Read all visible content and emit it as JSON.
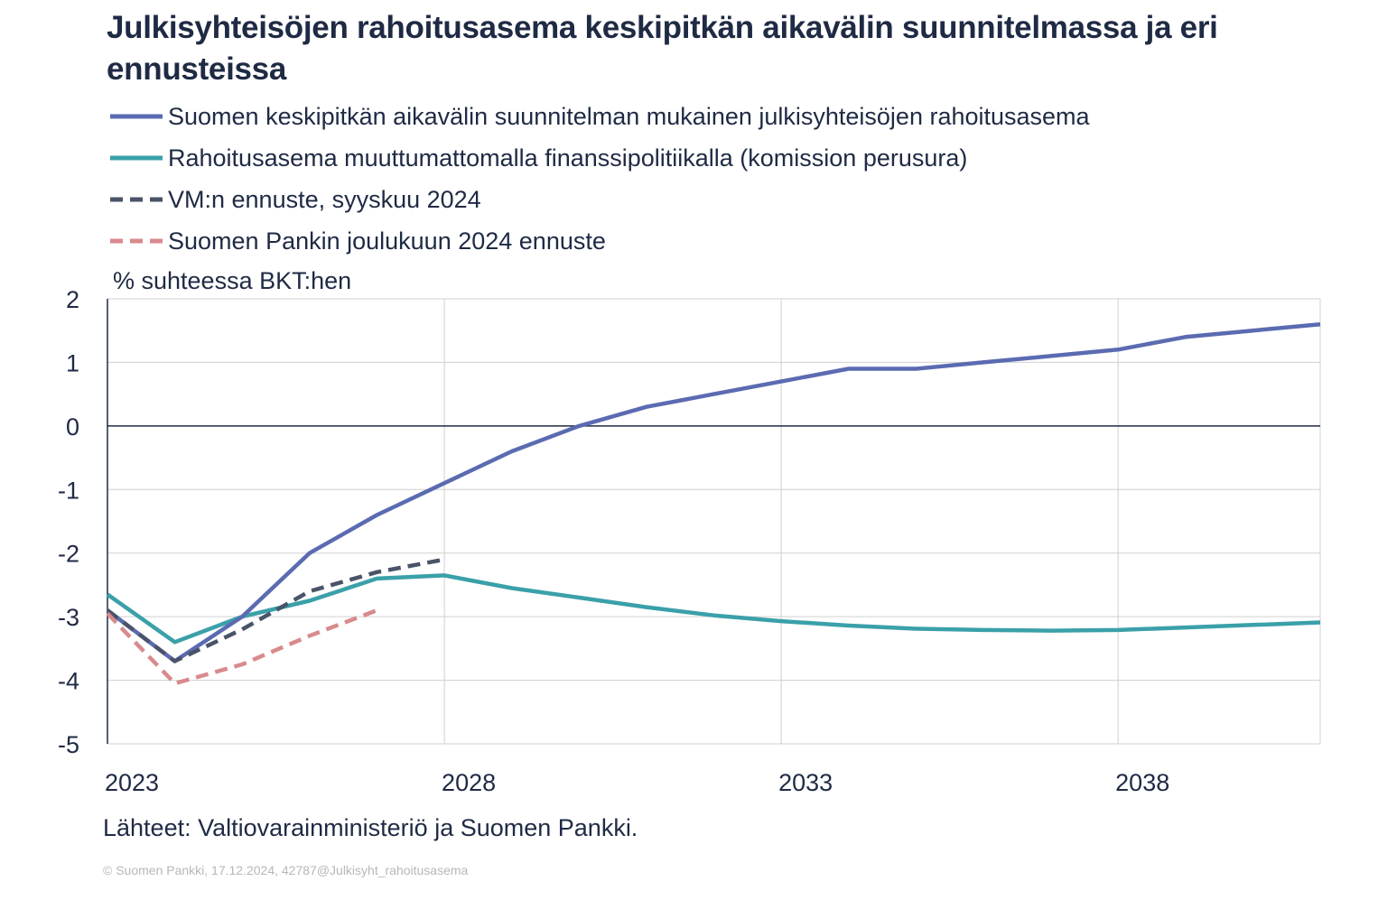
{
  "chart_data": {
    "type": "line",
    "title": "Julkisyhteisöjen rahoitusasema keskipitkän aikavälin suunnitelmassa ja eri ennusteissa",
    "ylabel": "% suhteessa BKT:hen",
    "xlabel": "",
    "xlim": [
      2023,
      2041
    ],
    "ylim": [
      -5,
      2
    ],
    "yticks": [
      "2",
      "1",
      "0",
      "-1",
      "-2",
      "-3",
      "-4",
      "-5"
    ],
    "xticks": [
      "2023",
      "2028",
      "2033",
      "2038"
    ],
    "grid": true,
    "legend_position": "top",
    "series": [
      {
        "name": "Suomen keskipitkän aikavälin suunnitelman mukainen julkisyhteisöjen rahoitusasema",
        "color": "#5b6bb1",
        "dash": "solid",
        "x": [
          2023,
          2024,
          2025,
          2026,
          2027,
          2028,
          2029,
          2030,
          2031,
          2032,
          2033,
          2034,
          2035,
          2036,
          2037,
          2038,
          2039,
          2040,
          2041
        ],
        "values": [
          -2.9,
          -3.7,
          -3.0,
          -2.0,
          -1.4,
          -0.9,
          -0.4,
          0.0,
          0.3,
          0.5,
          0.7,
          0.9,
          0.9,
          1.0,
          1.1,
          1.2,
          1.4,
          1.5,
          1.6
        ]
      },
      {
        "name": "Rahoitusasema muuttumattomalla finanssipolitiikalla (komission perusura)",
        "color": "#3aa0a9",
        "dash": "solid",
        "x": [
          2023,
          2024,
          2025,
          2026,
          2027,
          2028,
          2029,
          2030,
          2031,
          2032,
          2033,
          2034,
          2035,
          2036,
          2037,
          2038,
          2039,
          2040,
          2041
        ],
        "values": [
          -2.65,
          -3.4,
          -3.0,
          -2.75,
          -2.4,
          -2.35,
          -2.55,
          -2.7,
          -2.85,
          -2.98,
          -3.07,
          -3.14,
          -3.19,
          -3.21,
          -3.22,
          -3.21,
          -3.17,
          -3.13,
          -3.09
        ]
      },
      {
        "name": "VM:n ennuste, syyskuu 2024",
        "color": "#4a5468",
        "dash": "dashed",
        "x": [
          2023,
          2024,
          2025,
          2026,
          2027,
          2028
        ],
        "values": [
          -2.9,
          -3.7,
          -3.2,
          -2.6,
          -2.3,
          -2.1
        ]
      },
      {
        "name": "Suomen Pankin joulukuun 2024 ennuste",
        "color": "#d98a8d",
        "dash": "dashed",
        "x": [
          2023,
          2024,
          2025,
          2026,
          2027
        ],
        "values": [
          -2.95,
          -4.05,
          -3.75,
          -3.3,
          -2.9
        ]
      }
    ]
  },
  "source": "Lähteet: Valtiovarainministeriö ja Suomen Pankki.",
  "copyright": "© Suomen Pankki, 17.12.2024, 42787@Julkisyht_rahoitusasema"
}
